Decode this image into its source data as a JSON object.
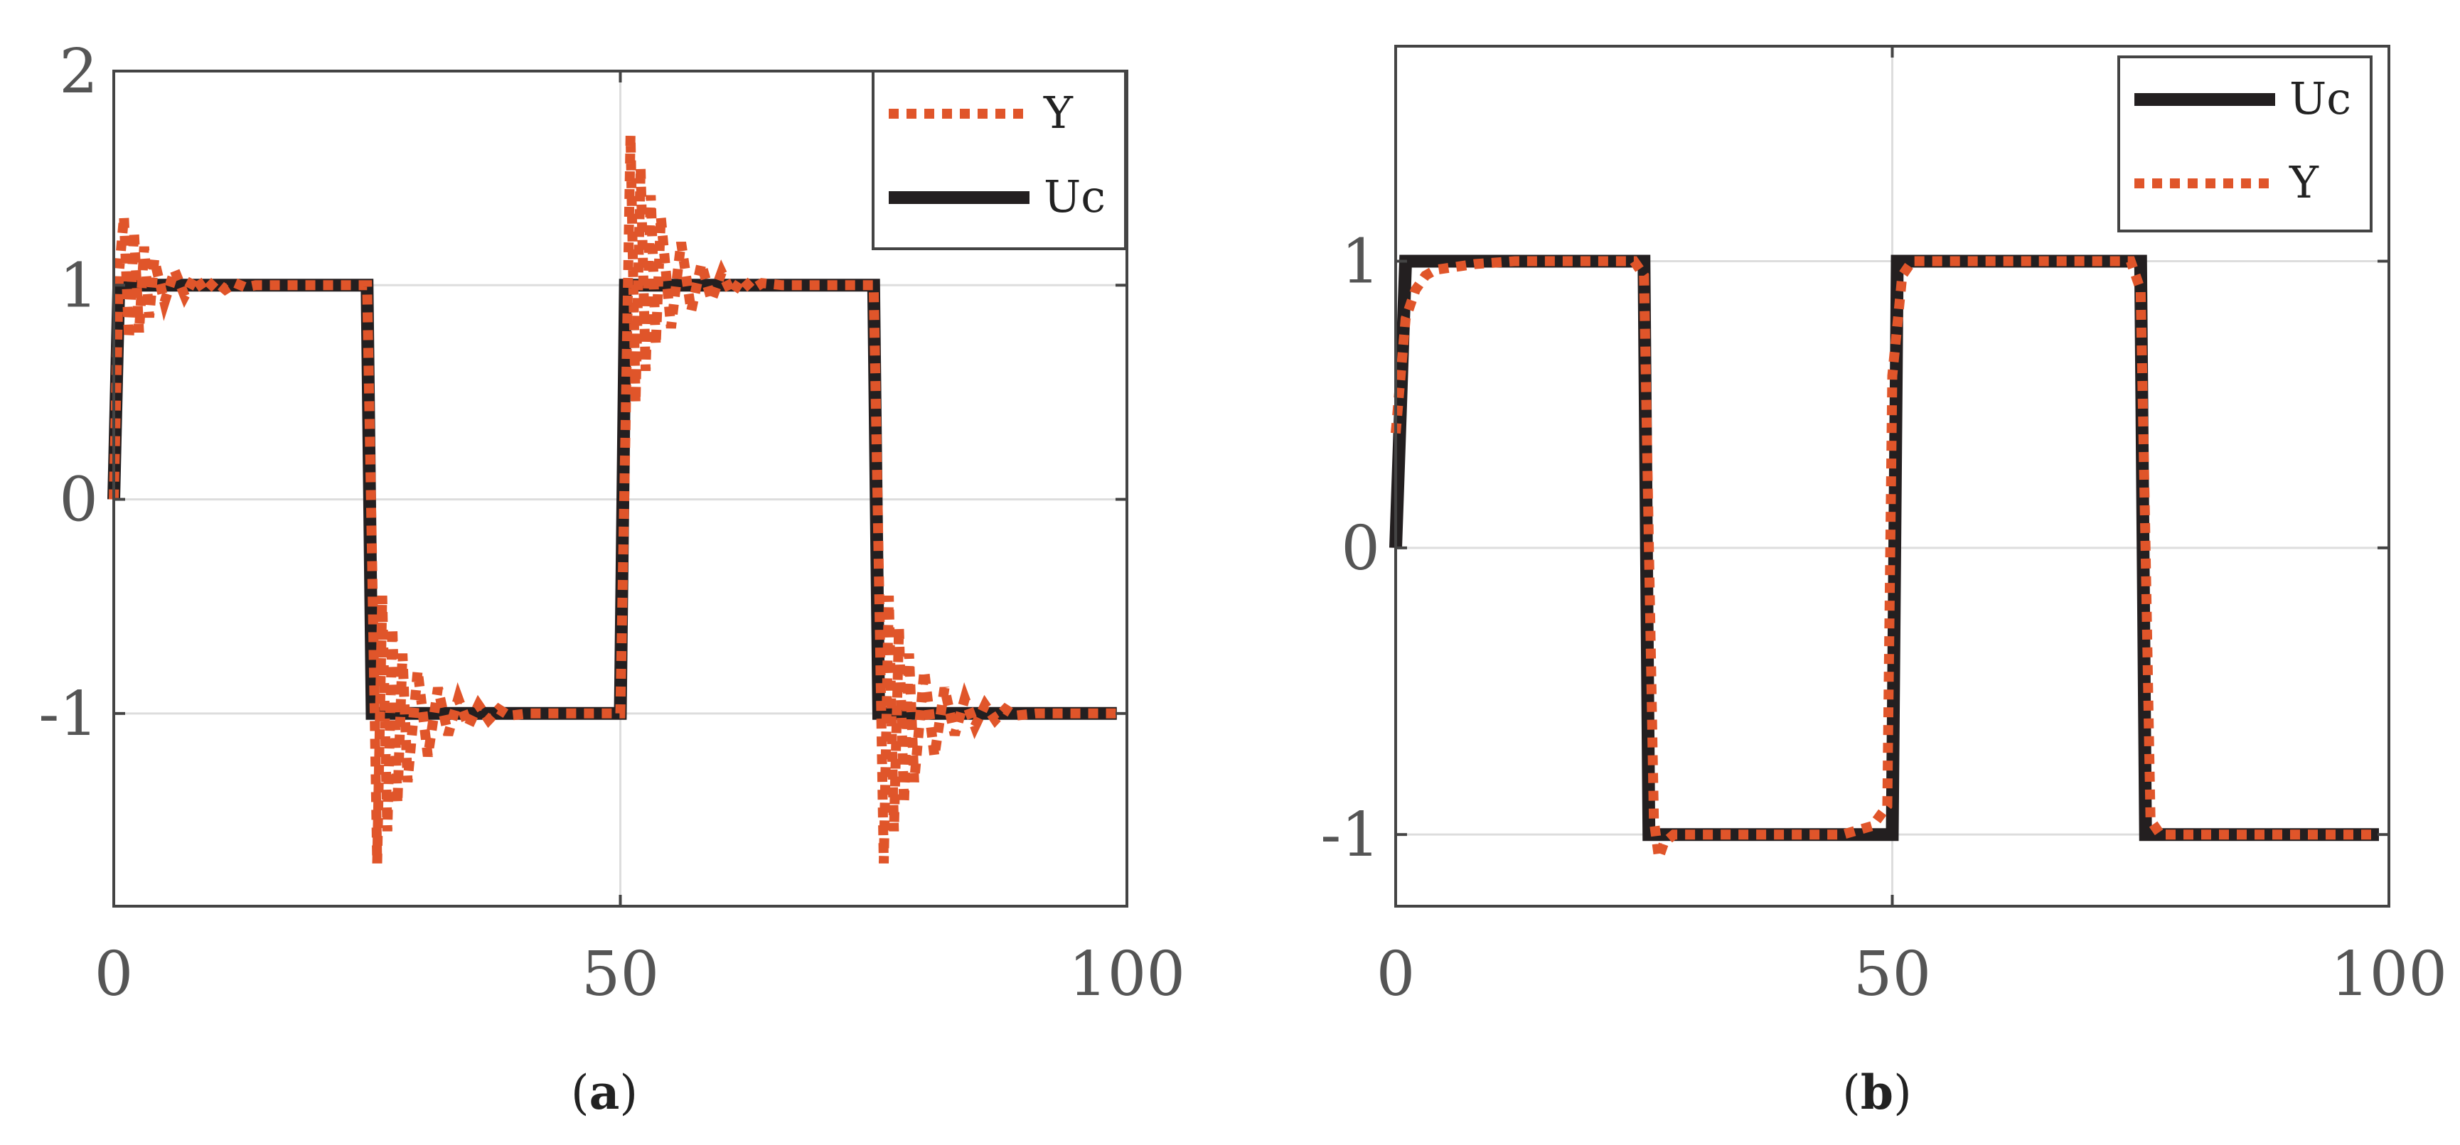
{
  "colors": {
    "uc": "#231f20",
    "y": "#e0552a",
    "grid": "#dddddd",
    "axis": "#444444"
  },
  "chart_data": [
    {
      "type": "line",
      "caption": {
        "open": "(",
        "letter": "a",
        "close": ")"
      },
      "xlim": [
        0,
        100
      ],
      "ylim": [
        -1.9,
        2
      ],
      "xticks": [
        {
          "v": 0,
          "label": "0"
        },
        {
          "v": 50,
          "label": "50"
        },
        {
          "v": 100,
          "label": "100"
        }
      ],
      "yticks": [
        {
          "v": -1,
          "label": "-1"
        },
        {
          "v": 0,
          "label": "0"
        },
        {
          "v": 1,
          "label": "1"
        },
        {
          "v": 2,
          "label": "2"
        }
      ],
      "grid": true,
      "legend_position": "top-right",
      "legend_order": [
        "Y",
        "Uc"
      ],
      "series": [
        {
          "name": "Uc",
          "style": "solid",
          "x": [
            0,
            0.5,
            25,
            25.5,
            50,
            50.5,
            75,
            75.5,
            99
          ],
          "y": [
            0,
            1,
            1,
            -1,
            -1,
            1,
            1,
            -1,
            -1
          ]
        },
        {
          "name": "Y",
          "style": "dotted",
          "x": [
            0,
            0.5,
            1,
            1.5,
            2,
            2.5,
            3,
            3.5,
            4,
            5,
            6,
            7,
            8,
            9,
            10,
            11,
            12,
            13,
            14,
            16,
            18,
            20,
            22,
            24,
            25,
            25.5,
            26,
            26.5,
            27,
            27.5,
            28,
            28.5,
            29,
            30,
            31,
            32,
            33,
            34,
            35,
            36,
            37,
            38,
            39,
            41,
            43,
            45,
            47,
            49,
            50,
            50.5,
            51,
            51.5,
            52,
            52.5,
            53,
            53.5,
            54,
            55,
            56,
            57,
            58,
            59,
            60,
            61,
            62,
            63,
            64,
            66,
            68,
            70,
            72,
            74,
            75,
            75.5,
            76,
            76.5,
            77,
            77.5,
            78,
            78.5,
            79,
            80,
            81,
            82,
            83,
            84,
            85,
            86,
            87,
            88,
            89,
            91,
            93,
            95,
            97,
            99
          ],
          "y": [
            0,
            1.05,
            1.32,
            0.75,
            1.25,
            0.78,
            1.18,
            0.85,
            1.12,
            0.92,
            1.07,
            0.95,
            1.04,
            0.97,
            1.02,
            0.98,
            1.01,
            0.99,
            1.0,
            1.0,
            1.0,
            1.0,
            1.0,
            1.0,
            1.0,
            -0.3,
            -1.7,
            -0.45,
            -1.55,
            -0.6,
            -1.42,
            -0.72,
            -1.32,
            -0.8,
            -1.2,
            -0.88,
            -1.1,
            -0.93,
            -1.06,
            -0.96,
            -1.03,
            -0.98,
            -1.01,
            -1.0,
            -1.0,
            -1.0,
            -1.0,
            -1.0,
            -1.0,
            0.3,
            1.7,
            0.45,
            1.55,
            0.6,
            1.42,
            0.72,
            1.32,
            0.8,
            1.2,
            0.88,
            1.1,
            0.93,
            1.06,
            0.96,
            1.03,
            0.98,
            1.01,
            1.0,
            1.0,
            1.0,
            1.0,
            1.0,
            1.0,
            -0.3,
            -1.7,
            -0.45,
            -1.55,
            -0.6,
            -1.42,
            -0.72,
            -1.32,
            -0.8,
            -1.2,
            -0.88,
            -1.1,
            -0.93,
            -1.06,
            -0.96,
            -1.03,
            -0.98,
            -1.01,
            -1.0,
            -1.0,
            -1.0,
            -1.0,
            -1.0
          ]
        }
      ]
    },
    {
      "type": "line",
      "caption": {
        "open": "(",
        "letter": "b",
        "close": ")"
      },
      "xlim": [
        0,
        100
      ],
      "ylim": [
        -1.25,
        1.75
      ],
      "xticks": [
        {
          "v": 0,
          "label": "0"
        },
        {
          "v": 50,
          "label": "50"
        },
        {
          "v": 100,
          "label": "100"
        }
      ],
      "yticks": [
        {
          "v": -1,
          "label": "-1"
        },
        {
          "v": 0,
          "label": "0"
        },
        {
          "v": 1,
          "label": "1"
        }
      ],
      "grid": true,
      "legend_position": "top-right",
      "legend_order": [
        "Uc",
        "Y"
      ],
      "series": [
        {
          "name": "Uc",
          "style": "solid",
          "x": [
            0,
            1,
            25,
            25.5,
            50,
            50.5,
            75,
            75.5,
            99
          ],
          "y": [
            0,
            1,
            1,
            -1,
            -1,
            1,
            1,
            -1,
            -1
          ]
        },
        {
          "name": "Y",
          "style": "dotted",
          "x": [
            0,
            0.5,
            1,
            2,
            3,
            4,
            6,
            8,
            12,
            16,
            20,
            24,
            25,
            25.5,
            26,
            26.5,
            27,
            28,
            30,
            35,
            40,
            45,
            48,
            49.5,
            50,
            51,
            52,
            55,
            60,
            65,
            70,
            74,
            75,
            75.5,
            76,
            77,
            78,
            80,
            85,
            90,
            95,
            99
          ],
          "y": [
            0.4,
            0.6,
            0.8,
            0.9,
            0.95,
            0.97,
            0.98,
            0.99,
            1.0,
            1.0,
            1.0,
            1.0,
            0.95,
            0,
            -0.95,
            -1.08,
            -1.03,
            -1.0,
            -1.0,
            -1.0,
            -1.0,
            -1.0,
            -0.97,
            -0.9,
            0.6,
            0.95,
            1.0,
            1.0,
            1.0,
            1.0,
            1.0,
            1.0,
            0.9,
            0,
            -0.95,
            -1.0,
            -1.0,
            -1.0,
            -1.0,
            -1.0,
            -1.0,
            -1.0
          ]
        }
      ]
    }
  ]
}
